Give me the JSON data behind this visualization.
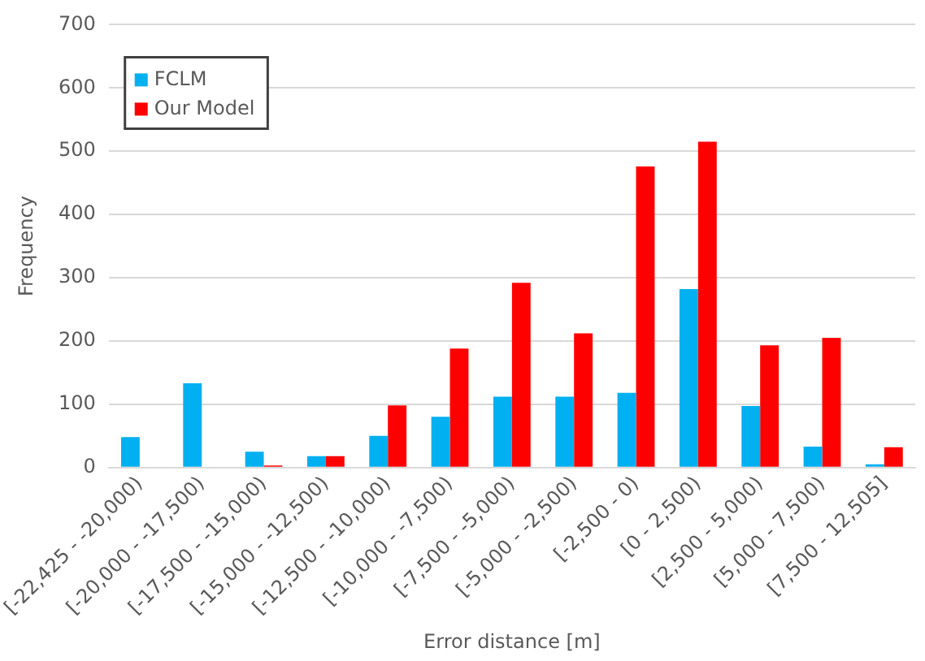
{
  "chart_data": {
    "type": "bar",
    "xlabel": "Error distance [m]",
    "ylabel": "Frequency",
    "categories": [
      "[-22,425 - -20,000)",
      "[-20,000 - -17,500)",
      "[-17,500 - -15,000)",
      "[-15,000 - -12,500)",
      "[-12,500 - -10,000)",
      "[-10,000 - -7,500)",
      "[-7,500 - -5,000)",
      "[-5,000 - -2,500)",
      "[-2,500 - 0)",
      "[0 - 2,500)",
      "[2,500 - 5,000)",
      "[5,000 - 7,500)",
      "[7,500 - 12,505]"
    ],
    "series": [
      {
        "name": "FCLM",
        "color": "#00b0f0",
        "values": [
          48,
          133,
          25,
          18,
          50,
          80,
          112,
          112,
          118,
          282,
          97,
          33,
          5
        ]
      },
      {
        "name": "Our Model",
        "color": "#ff0000",
        "values": [
          0,
          0,
          3,
          18,
          98,
          188,
          292,
          212,
          476,
          515,
          193,
          205,
          32
        ]
      }
    ],
    "ylim": [
      0,
      700
    ],
    "yticks": [
      0,
      100,
      200,
      300,
      400,
      500,
      600,
      700
    ],
    "grid": "y",
    "legend": "top left"
  }
}
